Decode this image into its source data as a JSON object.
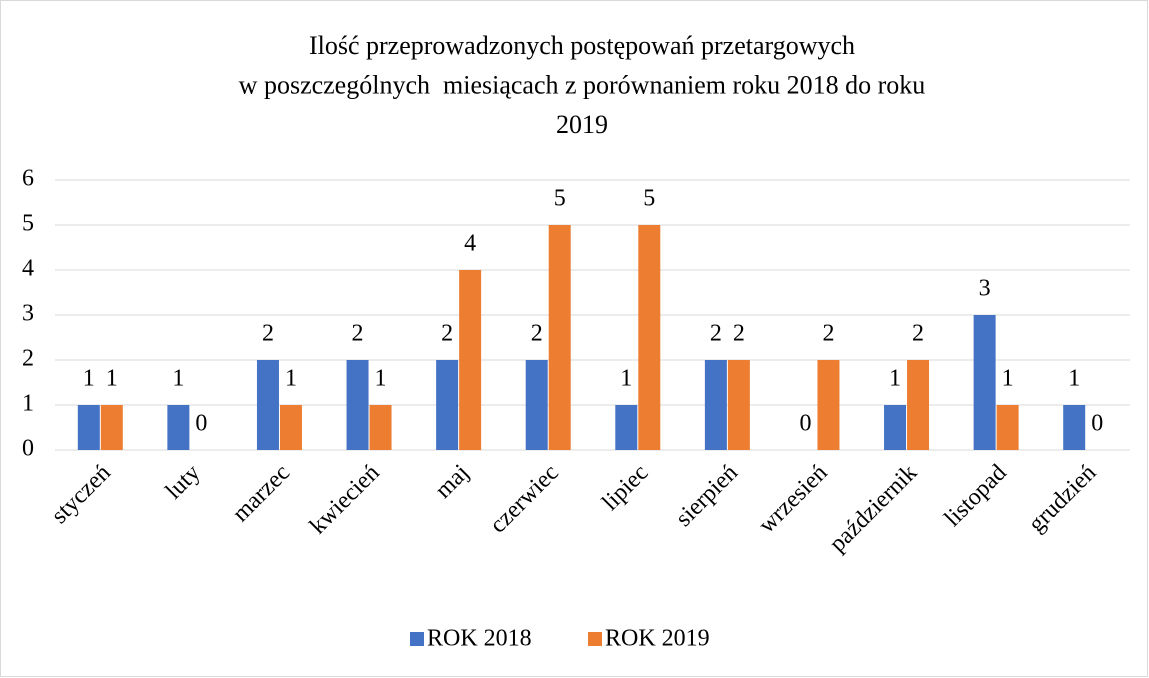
{
  "chart_data": {
    "type": "bar",
    "title": [
      "Ilość przeprowadzonych postępowań przetargowych",
      "w poszczególnych  miesiącach z porównaniem roku 2018 do roku",
      "2019"
    ],
    "categories": [
      "styczeń",
      "luty",
      "marzec",
      "kwiecień",
      "maj",
      "czerwiec",
      "lipiec",
      "sierpień",
      "wrzesień",
      "październik",
      "listopad",
      "grudzień"
    ],
    "series": [
      {
        "name": "ROK 2018",
        "color": "#4472c4",
        "values": [
          1,
          1,
          2,
          2,
          2,
          2,
          1,
          2,
          0,
          1,
          3,
          1
        ]
      },
      {
        "name": "ROK 2019",
        "color": "#ed7d31",
        "values": [
          1,
          0,
          1,
          1,
          4,
          5,
          5,
          2,
          2,
          2,
          1,
          0
        ]
      }
    ],
    "ylim": [
      0,
      6
    ],
    "yticks": [
      0,
      1,
      2,
      3,
      4,
      5,
      6
    ],
    "grid": true,
    "legend": "bottom"
  }
}
